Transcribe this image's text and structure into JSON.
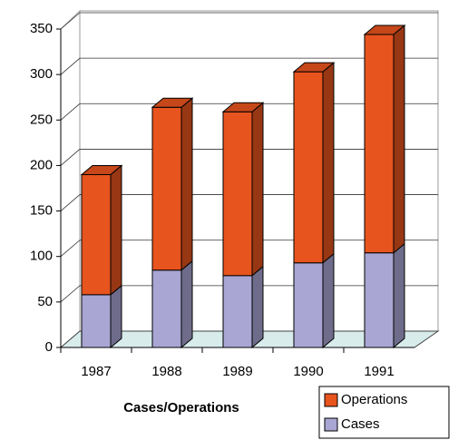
{
  "chart_data": {
    "type": "bar3d_stacked",
    "x_label": "Cases/Operations",
    "categories": [
      "1987",
      "1988",
      "1989",
      "1990",
      "1991"
    ],
    "series": [
      {
        "name": "Cases",
        "color": "#a9a6d4",
        "values": [
          58,
          85,
          79,
          93,
          104
        ]
      },
      {
        "name": "Operations",
        "color": "#e8541e",
        "values": [
          132,
          179,
          180,
          210,
          240
        ]
      }
    ],
    "ylim": [
      0,
      350
    ],
    "yticks": [
      0,
      50,
      100,
      150,
      200,
      250,
      300,
      350
    ],
    "grid": true
  }
}
